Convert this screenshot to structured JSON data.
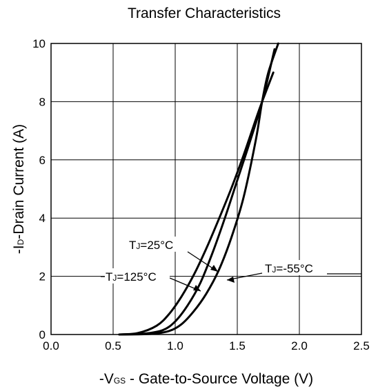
{
  "chart_data": {
    "type": "line",
    "title": "Transfer Characteristics",
    "xlabel": {
      "prefix": "-V",
      "sub": "GS",
      "rest": " - Gate-to-Source Voltage (V)"
    },
    "ylabel": {
      "prefix": "-I",
      "sub": "D",
      "rest": "-Drain Current (A)"
    },
    "xlim": [
      0,
      2.5
    ],
    "ylim": [
      0,
      10
    ],
    "x_ticks": [
      "0.0",
      "0.5",
      "1.0",
      "1.5",
      "2.0",
      "2.5"
    ],
    "y_ticks": [
      "0",
      "2",
      "4",
      "6",
      "8",
      "10"
    ],
    "grid": true,
    "series": [
      {
        "name": "TJ=25°C",
        "x": [
          0.55,
          0.75,
          0.9,
          1.0,
          1.1,
          1.2,
          1.3,
          1.4,
          1.5,
          1.6,
          1.7,
          1.8
        ],
        "y": [
          0,
          0.03,
          0.15,
          0.45,
          1.0,
          1.75,
          2.8,
          4.0,
          5.3,
          6.6,
          8.0,
          9.8
        ]
      },
      {
        "name": "TJ=125°C",
        "x": [
          0.55,
          0.7,
          0.85,
          0.95,
          1.05,
          1.15,
          1.25,
          1.35,
          1.45,
          1.55,
          1.65,
          1.7,
          1.79
        ],
        "y": [
          0,
          0.05,
          0.3,
          0.7,
          1.3,
          2.05,
          2.95,
          3.95,
          5.0,
          6.15,
          7.4,
          8.0,
          9.0
        ]
      },
      {
        "name": "TJ=-55°C",
        "x": [
          0.55,
          0.8,
          0.95,
          1.05,
          1.15,
          1.25,
          1.35,
          1.45,
          1.55,
          1.65,
          1.7,
          1.75,
          1.83
        ],
        "y": [
          0,
          0.02,
          0.12,
          0.35,
          0.8,
          1.4,
          2.2,
          3.3,
          4.7,
          6.7,
          8.0,
          9.0,
          10.0
        ]
      }
    ],
    "annotations": [
      {
        "prefix": "T",
        "sub": "J",
        "rest": "=25°C"
      },
      {
        "prefix": "T",
        "sub": "J",
        "rest": "=125°C"
      },
      {
        "prefix": "T",
        "sub": "J",
        "rest": "=-55°C"
      }
    ]
  }
}
